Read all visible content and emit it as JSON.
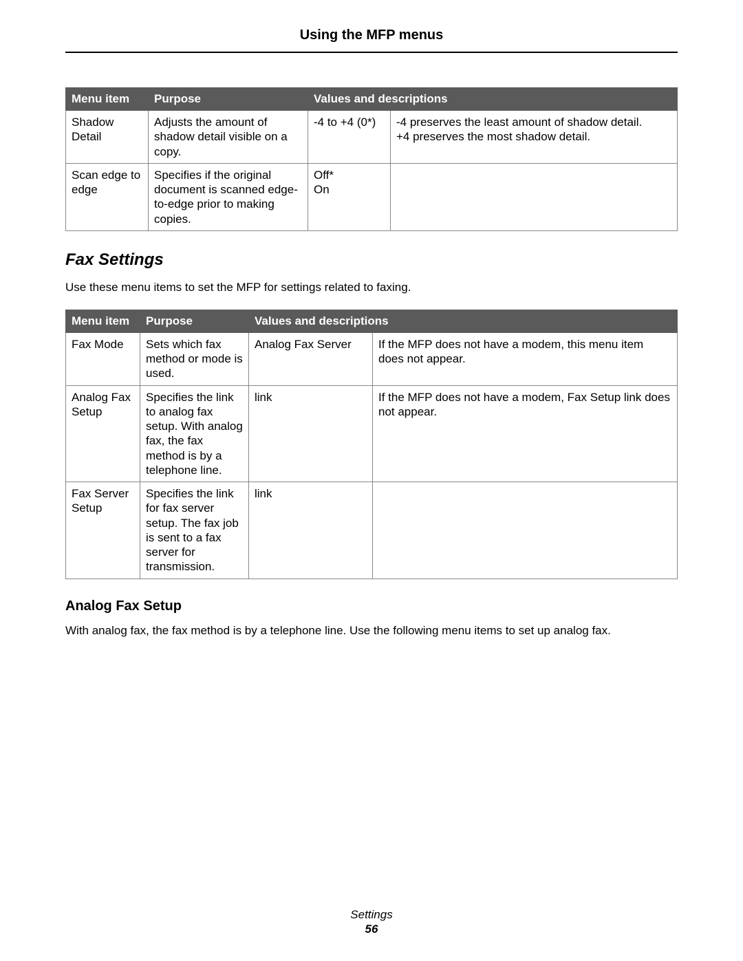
{
  "header": {
    "title": "Using the MFP menus"
  },
  "table1": {
    "headers": {
      "menu_item": "Menu item",
      "purpose": "Purpose",
      "values": "Values and descriptions"
    },
    "rows": [
      {
        "menu_item": "Shadow Detail",
        "purpose": "Adjusts the amount of shadow detail visible on a copy.",
        "value": "-4 to +4 (0*)",
        "desc_line1": "-4 preserves the least amount of shadow detail.",
        "desc_line2": "+4 preserves the most shadow detail."
      },
      {
        "menu_item": "Scan edge to edge",
        "purpose": "Specifies if the original document is scanned edge-to-edge prior to making copies.",
        "value_line1": "Off*",
        "value_line2": "On",
        "desc": ""
      }
    ]
  },
  "fax_section": {
    "heading": "Fax Settings",
    "intro": "Use these menu items to set the MFP for settings related to faxing."
  },
  "table2": {
    "headers": {
      "menu_item": "Menu item",
      "purpose": "Purpose",
      "values": "Values and descriptions"
    },
    "rows": [
      {
        "menu_item": "Fax Mode",
        "purpose": "Sets which fax method or mode is used.",
        "value": "Analog Fax Server",
        "desc": "If the MFP does not have a modem, this menu item does not appear."
      },
      {
        "menu_item": "Analog Fax Setup",
        "purpose": "Specifies the link to analog fax setup. With analog fax, the fax method is by a telephone line.",
        "value": "link",
        "desc": "If the MFP does not have a modem, Fax Setup link does not appear."
      },
      {
        "menu_item": "Fax Server Setup",
        "purpose": "Specifies the link for fax server setup. The fax job is sent to a fax server for transmission.",
        "value": "link",
        "desc": ""
      }
    ]
  },
  "analog_section": {
    "heading": "Analog Fax Setup",
    "intro": "With analog fax, the fax method is by a telephone line. Use the following menu items to set up analog fax."
  },
  "footer": {
    "label": "Settings",
    "page": "56"
  },
  "style": {
    "header_bg": "#5a5a5a",
    "header_fg": "#ffffff",
    "border_color": "#888888",
    "page_bg": "#ffffff",
    "text_color": "#000000",
    "base_fontsize": 17,
    "title_fontsize": 20,
    "section_heading_fontsize": 24,
    "subsection_heading_fontsize": 20
  }
}
